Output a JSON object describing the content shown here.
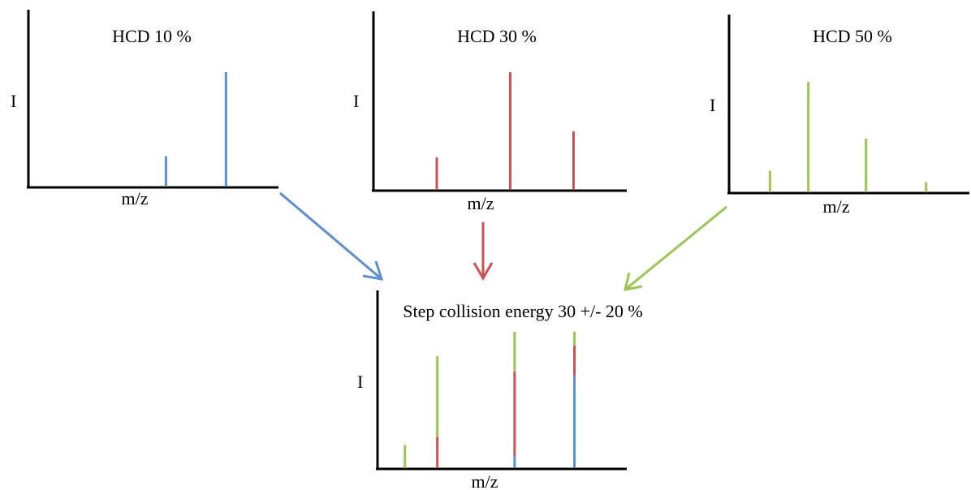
{
  "colors": {
    "blue": "#5B8FD2",
    "red": "#D05050",
    "green": "#9BC64F",
    "axis": "#000000"
  },
  "panels": [
    {
      "id": "hcd10",
      "title": "HCD  10 %",
      "ylabel": "I",
      "xlabel": "m/z",
      "color": "blue",
      "peaks": [
        {
          "mz": 0.55,
          "intensity": 0.27
        },
        {
          "mz": 0.79,
          "intensity": 1.0
        }
      ]
    },
    {
      "id": "hcd30",
      "title": "HCD  30 %",
      "ylabel": "I",
      "xlabel": "m/z",
      "color": "red",
      "peaks": [
        {
          "mz": 0.25,
          "intensity": 0.28
        },
        {
          "mz": 0.54,
          "intensity": 1.0
        },
        {
          "mz": 0.79,
          "intensity": 0.5
        }
      ]
    },
    {
      "id": "hcd50",
      "title": "HCD  50 %",
      "ylabel": "I",
      "xlabel": "m/z",
      "color": "green",
      "peaks": [
        {
          "mz": 0.17,
          "intensity": 0.2
        },
        {
          "mz": 0.33,
          "intensity": 1.0
        },
        {
          "mz": 0.57,
          "intensity": 0.49
        },
        {
          "mz": 0.82,
          "intensity": 0.1
        }
      ]
    },
    {
      "id": "stepped",
      "title": "Step collision energy 30 +/-  20 %",
      "ylabel": "I",
      "xlabel": "m/z",
      "stacked_peaks": [
        {
          "mz": 0.11,
          "segments": [
            {
              "color": "green",
              "intensity": 0.17
            }
          ]
        },
        {
          "mz": 0.24,
          "segments": [
            {
              "color": "red",
              "intensity": 0.23
            },
            {
              "color": "green",
              "intensity": 0.59
            }
          ]
        },
        {
          "mz": 0.55,
          "segments": [
            {
              "color": "blue",
              "intensity": 0.09
            },
            {
              "color": "red",
              "intensity": 0.62
            },
            {
              "color": "green",
              "intensity": 0.29
            }
          ]
        },
        {
          "mz": 0.79,
          "segments": [
            {
              "color": "blue",
              "intensity": 0.68
            },
            {
              "color": "red",
              "intensity": 0.22
            },
            {
              "color": "green",
              "intensity": 0.1
            }
          ]
        }
      ]
    }
  ],
  "arrows": [
    {
      "from": "hcd10",
      "color": "blue"
    },
    {
      "from": "hcd30",
      "color": "red"
    },
    {
      "from": "hcd50",
      "color": "green"
    }
  ]
}
